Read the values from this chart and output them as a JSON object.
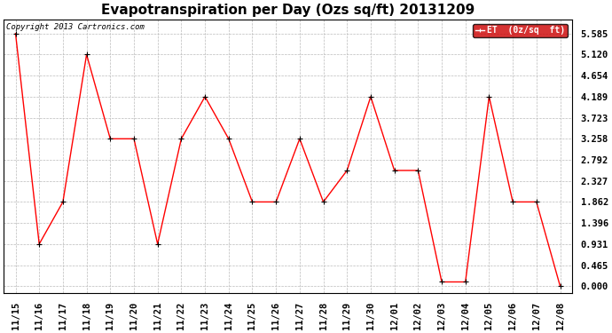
{
  "title": "Evapotranspiration per Day (Ozs sq/ft) 20131209",
  "copyright": "Copyright 2013 Cartronics.com",
  "legend_label": "ET  (0z/sq  ft)",
  "x_labels": [
    "11/15",
    "11/16",
    "11/17",
    "11/18",
    "11/19",
    "11/20",
    "11/21",
    "11/22",
    "11/23",
    "11/24",
    "11/25",
    "11/26",
    "11/27",
    "11/28",
    "11/29",
    "11/30",
    "12/01",
    "12/02",
    "12/03",
    "12/04",
    "12/05",
    "12/06",
    "12/07",
    "12/08"
  ],
  "y_values": [
    5.585,
    0.931,
    1.862,
    5.12,
    3.258,
    3.258,
    0.931,
    3.258,
    4.189,
    3.258,
    1.862,
    1.862,
    3.258,
    1.862,
    2.558,
    4.189,
    2.558,
    2.558,
    0.093,
    0.093,
    4.189,
    1.862,
    1.862,
    0.0
  ],
  "y_ticks": [
    0.0,
    0.465,
    0.931,
    1.396,
    1.862,
    2.327,
    2.792,
    3.258,
    3.723,
    4.189,
    4.654,
    5.12,
    5.585
  ],
  "line_color": "#ff0000",
  "marker": "+",
  "bg_color": "#ffffff",
  "plot_bg": "#ffffff",
  "grid_color": "#bbbbbb",
  "legend_bg": "#cc0000",
  "legend_text_color": "#ffffff",
  "title_fontsize": 11,
  "copyright_fontsize": 6.5,
  "tick_fontsize": 7.5,
  "ylim": [
    -0.15,
    5.9
  ],
  "figwidth": 6.9,
  "figheight": 3.75,
  "dpi": 100
}
